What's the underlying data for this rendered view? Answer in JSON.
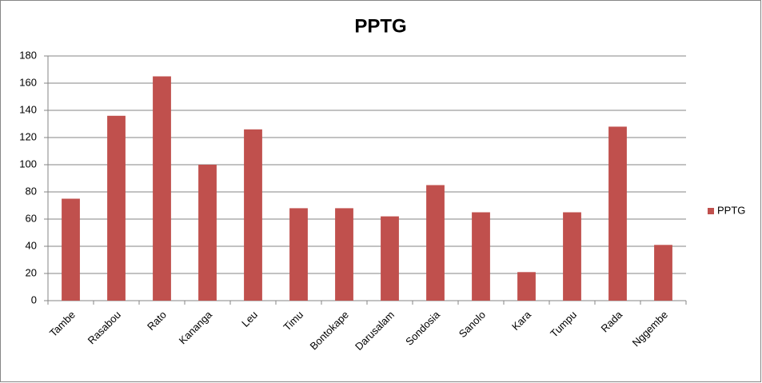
{
  "chart_data": {
    "type": "bar",
    "title": "PPTG",
    "categories": [
      "Tambe",
      "Rasabou",
      "Rato",
      "Kananga",
      "Leu",
      "Timu",
      "Bontokape",
      "Darusalam",
      "Sondosia",
      "Sanolo",
      "Kara",
      "Tumpu",
      "Rada",
      "Nggembe"
    ],
    "series": [
      {
        "name": "PPTG",
        "color": "#c0504d",
        "values": [
          75,
          136,
          165,
          100,
          126,
          68,
          68,
          62,
          85,
          65,
          21,
          65,
          128,
          41
        ]
      }
    ],
    "ylim": [
      0,
      180
    ],
    "yticks": [
      0,
      20,
      40,
      60,
      80,
      100,
      120,
      140,
      160,
      180
    ],
    "grid": true,
    "legend": "right"
  }
}
